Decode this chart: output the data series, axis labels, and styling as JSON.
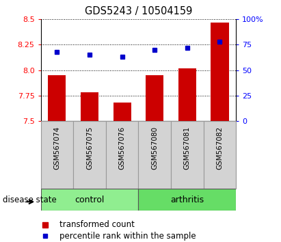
{
  "title": "GDS5243 / 10504159",
  "samples": [
    "GSM567074",
    "GSM567075",
    "GSM567076",
    "GSM567080",
    "GSM567081",
    "GSM567082"
  ],
  "transformed_counts": [
    7.95,
    7.78,
    7.68,
    7.95,
    8.02,
    8.47
  ],
  "percentile_ranks": [
    68,
    65,
    63,
    70,
    72,
    78
  ],
  "ylim_left": [
    7.5,
    8.5
  ],
  "ylim_right": [
    0,
    100
  ],
  "yticks_left": [
    7.5,
    7.75,
    8.0,
    8.25,
    8.5
  ],
  "yticks_right": [
    0,
    25,
    50,
    75,
    100
  ],
  "group_colors": {
    "control": "#90EE90",
    "arthritis": "#66DD66"
  },
  "bar_color": "#CC0000",
  "dot_color": "#0000CC",
  "bar_width": 0.55,
  "label_bar": "transformed count",
  "label_dot": "percentile rank within the sample",
  "disease_state_label": "disease state"
}
